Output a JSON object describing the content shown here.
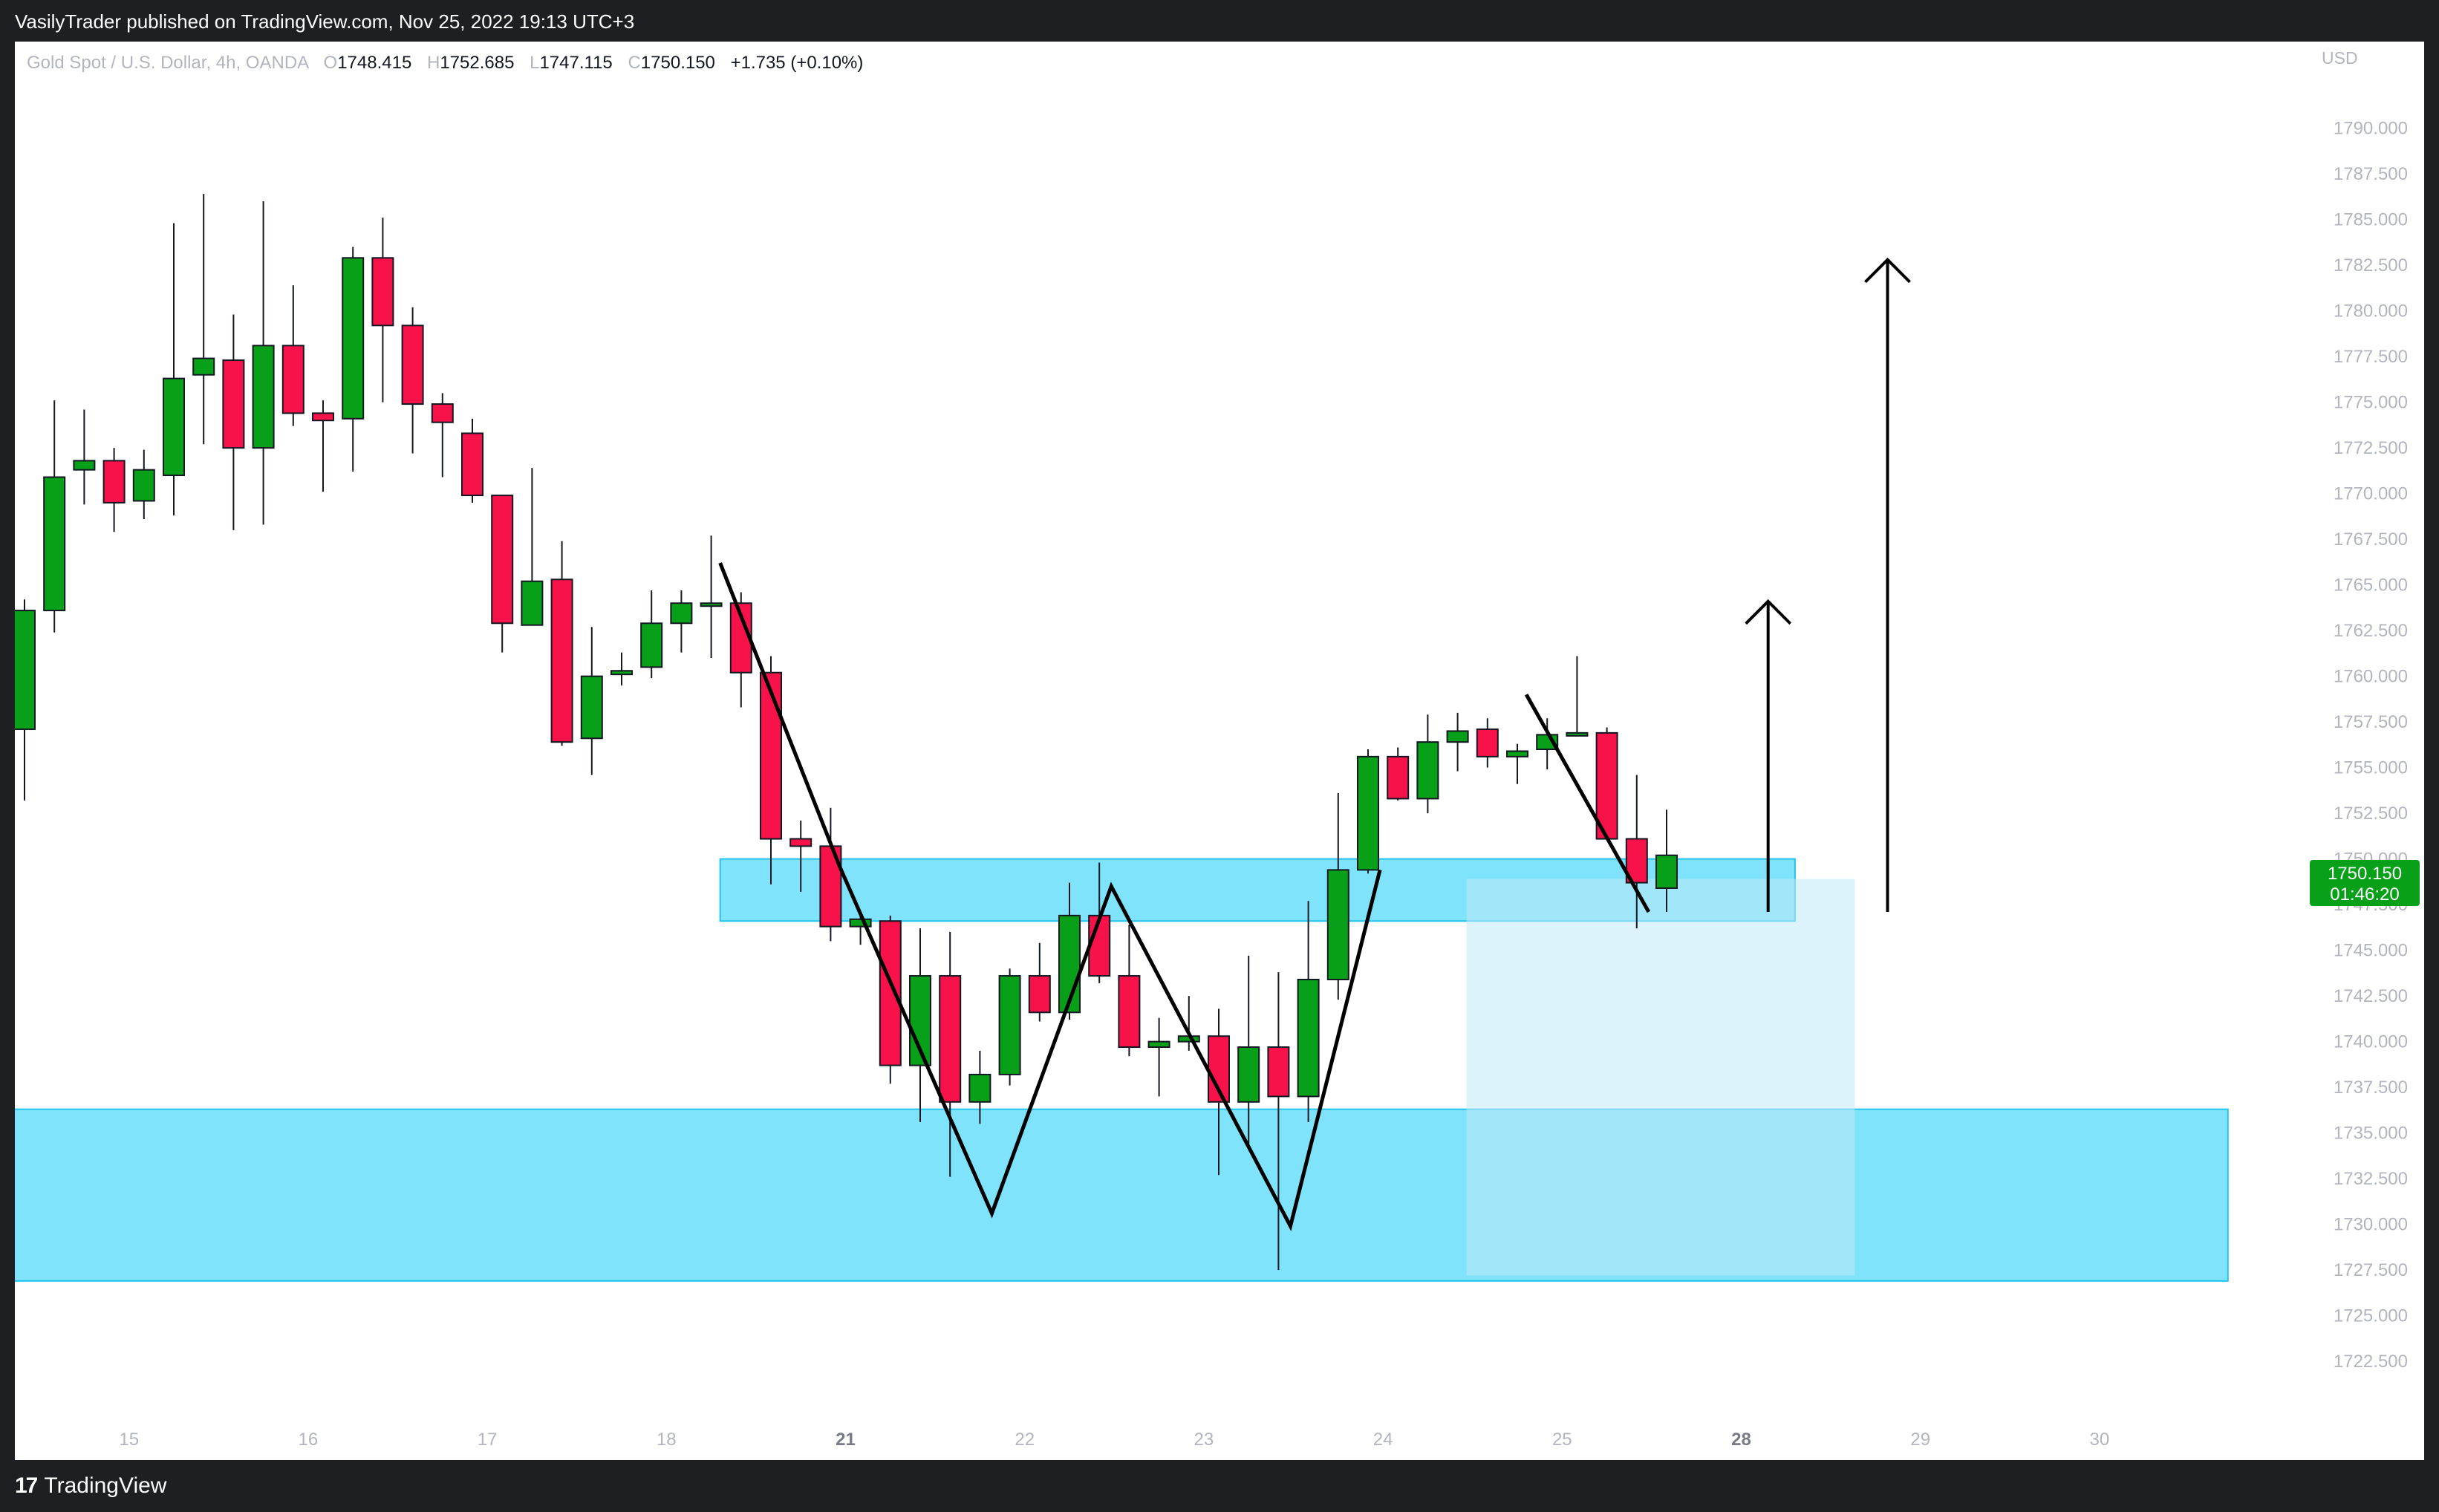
{
  "header": {
    "published": "VasilyTrader published on TradingView.com, Nov 25, 2022 19:13 UTC+3"
  },
  "legend": {
    "symbol": "Gold Spot / U.S. Dollar, 4h, OANDA",
    "o_label": "O",
    "o_value": "1748.415",
    "h_label": "H",
    "h_value": "1752.685",
    "l_label": "L",
    "l_value": "1747.115",
    "c_label": "C",
    "c_value": "1750.150",
    "change": "+1.735 (+0.10%)"
  },
  "price_axis": {
    "currency": "USD",
    "last_price": "1750.150",
    "countdown": "01:46:20"
  },
  "footer": {
    "brand": "TradingView",
    "brand_mark": "17"
  },
  "colors": {
    "up": "#089f19",
    "down": "#f7124a",
    "zone": "#7fe3fb",
    "zone_border": "#22c4ee",
    "projection": "#d4f2fc",
    "axis_text": "#b2b5be",
    "price_tag": "#089f19"
  },
  "chart_data": {
    "type": "candlestick",
    "symbol": "Gold Spot / U.S. Dollar",
    "interval": "4h",
    "ylim": [
      1721.0,
      1793.0
    ],
    "yticks": [
      "1790.000",
      "1787.500",
      "1785.000",
      "1782.500",
      "1780.000",
      "1777.500",
      "1775.000",
      "1772.500",
      "1770.000",
      "1767.500",
      "1765.000",
      "1762.500",
      "1760.000",
      "1757.500",
      "1755.000",
      "1752.500",
      "1750.000",
      "1747.500",
      "1745.000",
      "1742.500",
      "1740.000",
      "1737.500",
      "1735.000",
      "1732.500",
      "1730.000",
      "1727.500",
      "1725.000",
      "1722.500"
    ],
    "xticks": [
      {
        "label": "15",
        "bar": 3.5,
        "bold": false
      },
      {
        "label": "16",
        "bar": 9.5,
        "bold": false
      },
      {
        "label": "17",
        "bar": 15.5,
        "bold": false
      },
      {
        "label": "18",
        "bar": 21.5,
        "bold": false
      },
      {
        "label": "21",
        "bar": 27.5,
        "bold": true
      },
      {
        "label": "22",
        "bar": 33.5,
        "bold": false
      },
      {
        "label": "23",
        "bar": 39.5,
        "bold": false
      },
      {
        "label": "24",
        "bar": 45.5,
        "bold": false
      },
      {
        "label": "25",
        "bar": 51.5,
        "bold": false
      },
      {
        "label": "28",
        "bar": 57.5,
        "bold": true
      },
      {
        "label": "29",
        "bar": 63.5,
        "bold": false
      },
      {
        "label": "30",
        "bar": 69.5,
        "bold": false
      }
    ],
    "candles": [
      {
        "o": 1757.1,
        "h": 1764.2,
        "l": 1753.2,
        "c": 1763.6
      },
      {
        "o": 1763.6,
        "h": 1775.1,
        "l": 1762.4,
        "c": 1770.9
      },
      {
        "o": 1771.3,
        "h": 1774.6,
        "l": 1769.4,
        "c": 1771.8
      },
      {
        "o": 1771.8,
        "h": 1772.5,
        "l": 1767.9,
        "c": 1769.5
      },
      {
        "o": 1769.6,
        "h": 1772.4,
        "l": 1768.6,
        "c": 1771.3
      },
      {
        "o": 1771.0,
        "h": 1784.8,
        "l": 1768.8,
        "c": 1776.3
      },
      {
        "o": 1776.5,
        "h": 1786.4,
        "l": 1772.7,
        "c": 1777.4
      },
      {
        "o": 1777.3,
        "h": 1779.8,
        "l": 1768.0,
        "c": 1772.5
      },
      {
        "o": 1772.5,
        "h": 1786.0,
        "l": 1768.3,
        "c": 1778.1
      },
      {
        "o": 1778.1,
        "h": 1781.4,
        "l": 1773.7,
        "c": 1774.4
      },
      {
        "o": 1774.4,
        "h": 1775.1,
        "l": 1770.1,
        "c": 1774.0
      },
      {
        "o": 1774.1,
        "h": 1783.5,
        "l": 1771.2,
        "c": 1782.9
      },
      {
        "o": 1782.9,
        "h": 1785.1,
        "l": 1775.0,
        "c": 1779.2
      },
      {
        "o": 1779.2,
        "h": 1780.2,
        "l": 1772.2,
        "c": 1774.9
      },
      {
        "o": 1774.9,
        "h": 1775.5,
        "l": 1770.9,
        "c": 1773.9
      },
      {
        "o": 1773.3,
        "h": 1774.1,
        "l": 1769.5,
        "c": 1769.9
      },
      {
        "o": 1769.9,
        "h": 1769.9,
        "l": 1761.3,
        "c": 1762.9
      },
      {
        "o": 1762.8,
        "h": 1771.4,
        "l": 1762.8,
        "c": 1765.2
      },
      {
        "o": 1765.3,
        "h": 1767.4,
        "l": 1756.2,
        "c": 1756.4
      },
      {
        "o": 1756.6,
        "h": 1762.7,
        "l": 1754.6,
        "c": 1760.0
      },
      {
        "o": 1760.1,
        "h": 1761.3,
        "l": 1759.5,
        "c": 1760.3
      },
      {
        "o": 1760.5,
        "h": 1764.7,
        "l": 1759.9,
        "c": 1762.9
      },
      {
        "o": 1762.9,
        "h": 1764.7,
        "l": 1761.3,
        "c": 1764.0
      },
      {
        "o": 1764.0,
        "h": 1767.7,
        "l": 1761.0,
        "c": 1764.0
      },
      {
        "o": 1764.0,
        "h": 1764.6,
        "l": 1758.3,
        "c": 1760.2
      },
      {
        "o": 1760.2,
        "h": 1761.1,
        "l": 1748.6,
        "c": 1751.1
      },
      {
        "o": 1751.1,
        "h": 1752.1,
        "l": 1748.2,
        "c": 1750.7
      },
      {
        "o": 1750.7,
        "h": 1752.8,
        "l": 1745.5,
        "c": 1746.3
      },
      {
        "o": 1746.3,
        "h": 1747.1,
        "l": 1745.3,
        "c": 1746.7
      },
      {
        "o": 1746.6,
        "h": 1746.9,
        "l": 1737.7,
        "c": 1738.7
      },
      {
        "o": 1738.7,
        "h": 1746.2,
        "l": 1735.6,
        "c": 1743.6
      },
      {
        "o": 1743.6,
        "h": 1746.0,
        "l": 1732.6,
        "c": 1736.7
      },
      {
        "o": 1736.7,
        "h": 1739.5,
        "l": 1735.5,
        "c": 1738.2
      },
      {
        "o": 1738.2,
        "h": 1744.0,
        "l": 1737.6,
        "c": 1743.6
      },
      {
        "o": 1743.6,
        "h": 1745.4,
        "l": 1741.1,
        "c": 1741.6
      },
      {
        "o": 1741.6,
        "h": 1748.7,
        "l": 1741.2,
        "c": 1746.9
      },
      {
        "o": 1746.9,
        "h": 1749.8,
        "l": 1743.2,
        "c": 1743.6
      },
      {
        "o": 1743.6,
        "h": 1746.4,
        "l": 1739.2,
        "c": 1739.7
      },
      {
        "o": 1739.7,
        "h": 1741.3,
        "l": 1737.0,
        "c": 1740.0
      },
      {
        "o": 1740.0,
        "h": 1742.5,
        "l": 1739.5,
        "c": 1740.3
      },
      {
        "o": 1740.3,
        "h": 1741.8,
        "l": 1732.7,
        "c": 1736.7
      },
      {
        "o": 1736.7,
        "h": 1744.7,
        "l": 1734.2,
        "c": 1739.7
      },
      {
        "o": 1739.7,
        "h": 1743.8,
        "l": 1727.5,
        "c": 1737.0
      },
      {
        "o": 1737.0,
        "h": 1747.7,
        "l": 1735.6,
        "c": 1743.4
      },
      {
        "o": 1743.4,
        "h": 1753.6,
        "l": 1742.3,
        "c": 1749.4
      },
      {
        "o": 1749.4,
        "h": 1756.0,
        "l": 1749.2,
        "c": 1755.6
      },
      {
        "o": 1755.6,
        "h": 1756.1,
        "l": 1753.2,
        "c": 1753.3
      },
      {
        "o": 1753.3,
        "h": 1757.9,
        "l": 1752.5,
        "c": 1756.4
      },
      {
        "o": 1756.4,
        "h": 1758.0,
        "l": 1754.8,
        "c": 1757.0
      },
      {
        "o": 1757.1,
        "h": 1757.7,
        "l": 1755.0,
        "c": 1755.6
      },
      {
        "o": 1755.6,
        "h": 1756.3,
        "l": 1754.1,
        "c": 1755.9
      },
      {
        "o": 1756.0,
        "h": 1757.7,
        "l": 1754.9,
        "c": 1756.8
      },
      {
        "o": 1756.8,
        "h": 1761.1,
        "l": 1756.8,
        "c": 1756.9
      },
      {
        "o": 1756.9,
        "h": 1757.2,
        "l": 1751.1,
        "c": 1751.1
      },
      {
        "o": 1751.1,
        "h": 1754.6,
        "l": 1746.2,
        "c": 1748.7
      },
      {
        "o": 1748.4,
        "h": 1752.7,
        "l": 1747.1,
        "c": 1750.2
      }
    ],
    "zones": [
      {
        "from_bar": 23.3,
        "to_bar": 59.3,
        "top": 1750.0,
        "bottom": 1746.6
      },
      {
        "from_bar": -0.6,
        "to_bar": 73.8,
        "top": 1736.3,
        "bottom": 1726.9
      }
    ],
    "projection_box": {
      "from_bar": 48.3,
      "to_bar": 61.3,
      "top": 1748.9,
      "bottom": 1727.2
    },
    "pattern_lines": [
      [
        [
          23.3,
          1766.2
        ],
        [
          27.3,
          1749.6
        ],
        [
          32.4,
          1730.6
        ],
        [
          36.4,
          1748.5
        ],
        [
          42.4,
          1729.9
        ],
        [
          45.4,
          1749.4
        ]
      ],
      [
        [
          50.3,
          1759.0
        ],
        [
          54.4,
          1747.1
        ]
      ]
    ],
    "arrows": [
      {
        "bar": 58.4,
        "from": 1747.1,
        "to": 1764.1
      },
      {
        "bar": 62.4,
        "from": 1747.1,
        "to": 1782.8
      }
    ]
  }
}
